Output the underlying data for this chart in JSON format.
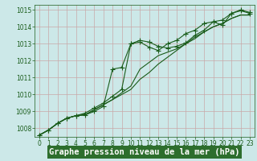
{
  "xlabel": "Graphe pression niveau de la mer (hPa)",
  "bg_color": "#cce8e8",
  "grid_color": "#c8a8a8",
  "line_color": "#1a5c1a",
  "xlim": [
    -0.5,
    23.5
  ],
  "ylim": [
    1007.5,
    1015.3
  ],
  "yticks": [
    1008,
    1009,
    1010,
    1011,
    1012,
    1013,
    1014,
    1015
  ],
  "xticks": [
    0,
    1,
    2,
    3,
    4,
    5,
    6,
    7,
    8,
    9,
    10,
    11,
    12,
    13,
    14,
    15,
    16,
    17,
    18,
    19,
    20,
    21,
    22,
    23
  ],
  "series": [
    [
      1007.6,
      1007.9,
      1008.3,
      1008.6,
      1008.75,
      1008.9,
      1009.2,
      1009.5,
      1009.9,
      1010.3,
      1013.0,
      1013.2,
      1013.1,
      1012.85,
      1012.75,
      1012.85,
      1013.05,
      1013.5,
      1013.8,
      1014.3,
      1014.1,
      1014.8,
      1014.95,
      1014.8
    ],
    [
      1007.6,
      1007.9,
      1008.3,
      1008.6,
      1008.75,
      1008.8,
      1009.1,
      1009.4,
      1009.7,
      1010.1,
      1010.5,
      1011.5,
      1011.9,
      1012.3,
      1012.5,
      1012.7,
      1013.0,
      1013.3,
      1013.7,
      1014.0,
      1014.2,
      1014.5,
      1014.7,
      1014.7
    ],
    [
      1007.6,
      1007.9,
      1008.3,
      1008.6,
      1008.75,
      1008.8,
      1009.1,
      1009.4,
      1009.7,
      1010.0,
      1010.3,
      1010.9,
      1011.3,
      1011.8,
      1012.2,
      1012.6,
      1013.0,
      1013.4,
      1013.7,
      1014.0,
      1014.2,
      1014.5,
      1014.7,
      1014.7
    ],
    [
      1007.6,
      1007.9,
      1008.3,
      1008.6,
      1008.75,
      1008.8,
      1009.0,
      1009.3,
      1011.5,
      1011.6,
      1013.0,
      1013.1,
      1012.8,
      1012.6,
      1013.0,
      1013.2,
      1013.6,
      1013.8,
      1014.2,
      1014.3,
      1014.4,
      1014.8,
      1015.0,
      1014.85
    ]
  ],
  "marker_series": [
    0,
    3
  ],
  "tick_fontsize": 5.5,
  "label_fontsize": 7.5,
  "label_bg": "#2d6e2d",
  "label_fg": "#ffffff"
}
